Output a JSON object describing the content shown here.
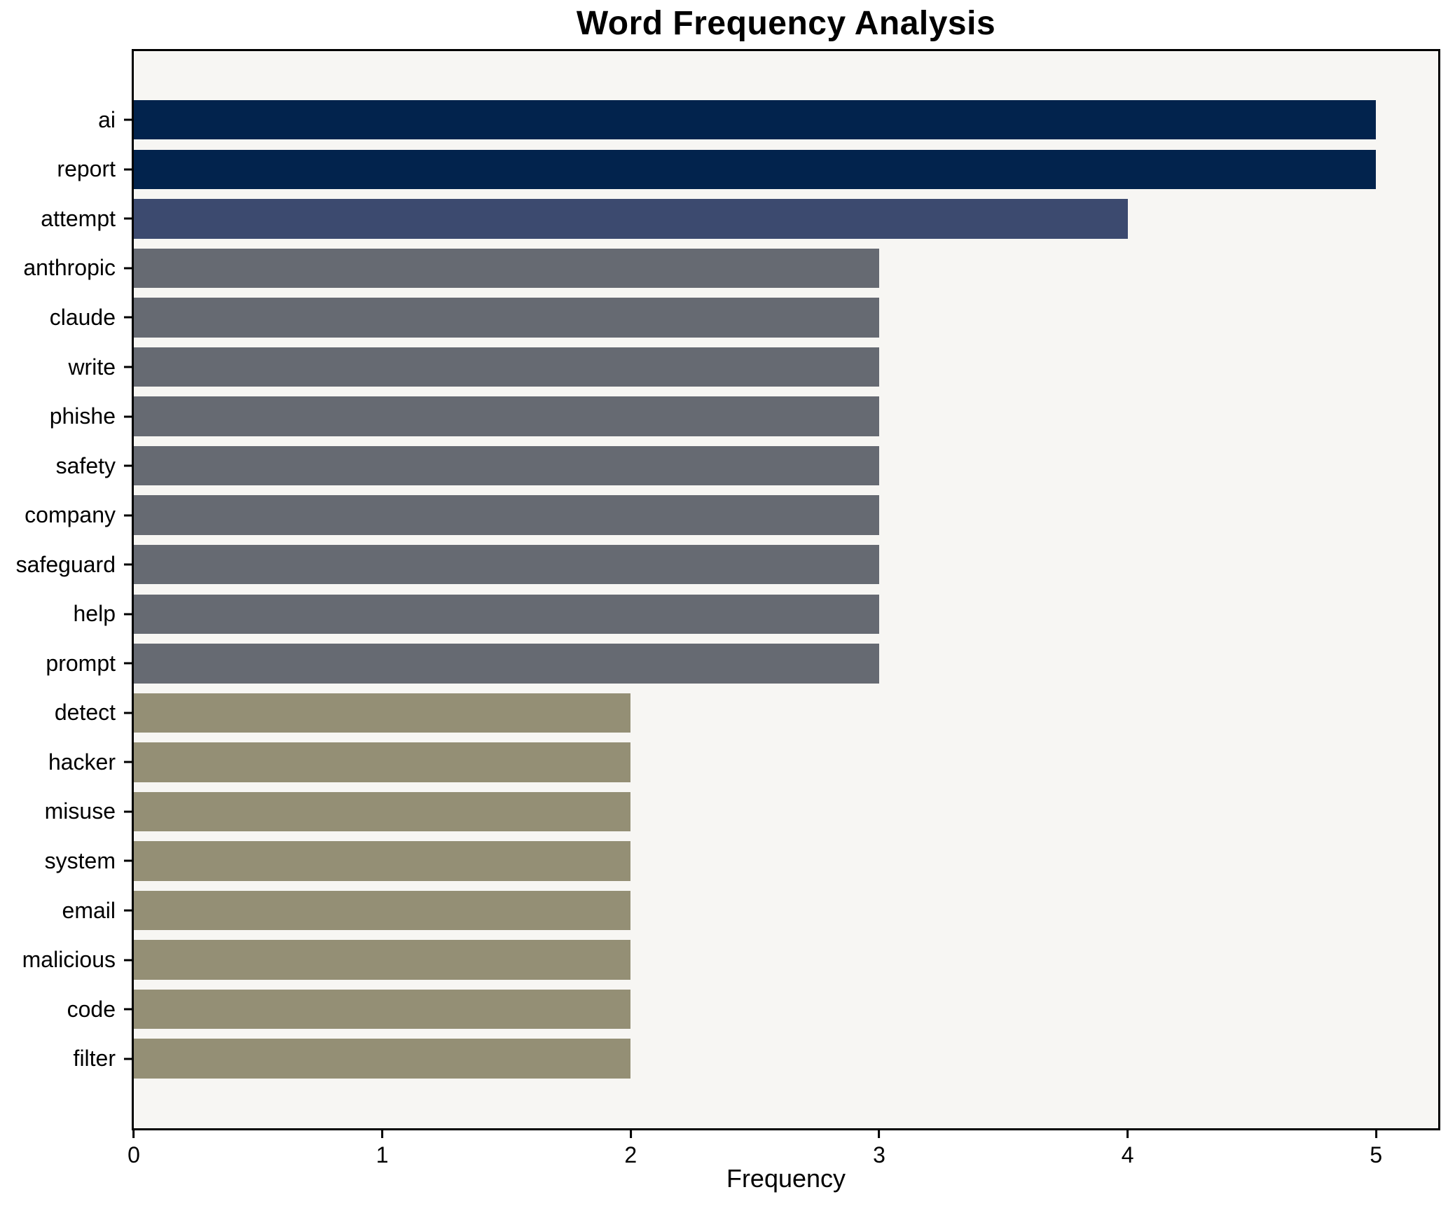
{
  "chart_data": {
    "type": "bar",
    "orientation": "horizontal",
    "title": "Word Frequency Analysis",
    "xlabel": "Frequency",
    "ylabel": "",
    "categories": [
      "ai",
      "report",
      "attempt",
      "anthropic",
      "claude",
      "write",
      "phishe",
      "safety",
      "company",
      "safeguard",
      "help",
      "prompt",
      "detect",
      "hacker",
      "misuse",
      "system",
      "email",
      "malicious",
      "code",
      "filter"
    ],
    "values": [
      5,
      5,
      4,
      3,
      3,
      3,
      3,
      3,
      3,
      3,
      3,
      3,
      2,
      2,
      2,
      2,
      2,
      2,
      2,
      2
    ],
    "x_ticks": [
      0,
      1,
      2,
      3,
      4,
      5
    ],
    "xlim": [
      0,
      5.25
    ],
    "bar_colors_by_value": {
      "5": "#02234d",
      "4": "#3c4a6f",
      "3": "#666a72",
      "2": "#948f75"
    },
    "plot_background": "#f7f6f3",
    "figure_background": "#ffffff",
    "spine_color": "#000000",
    "grid": false,
    "legend_position": "none"
  }
}
